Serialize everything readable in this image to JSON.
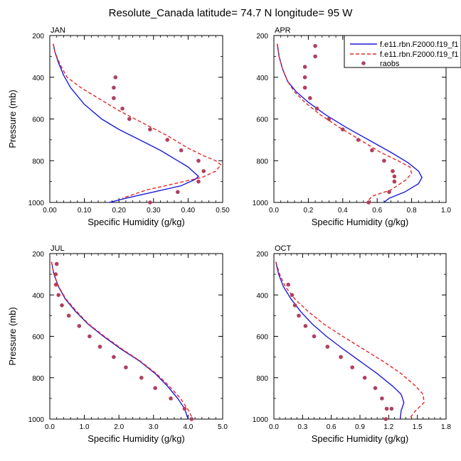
{
  "figure": {
    "title": "Resolute_Canada  latitude= 74.7 N longitude= 95 W",
    "legend": {
      "placement": "top-right of APR panel",
      "entries": [
        {
          "label": "f.e11.rbn.F2000.f19_f1",
          "style": "solid",
          "color": "#1a1adb"
        },
        {
          "label": "f.e11.rbn.F2000.f19_f1",
          "style": "dashed",
          "color": "#e8262a"
        },
        {
          "label": "raobs",
          "style": "marker",
          "color": "#b0405e"
        }
      ]
    },
    "colors": {
      "model1": "#1a1adb",
      "model2": "#e8262a",
      "raobs": "#b0405e"
    }
  },
  "chart_data": [
    {
      "type": "line",
      "panel_label": "JAN",
      "xlabel": "Specific Humidity (g/kg)",
      "ylabel": "Pressure (mb)",
      "xlim": [
        0,
        0.5
      ],
      "xticks": [
        0,
        0.1,
        0.2,
        0.3,
        0.4,
        0.5
      ],
      "xtick_labels": [
        "0.00",
        "0.10",
        "0.20",
        "0.30",
        "0.40",
        "0.50"
      ],
      "ylim": [
        1000,
        200
      ],
      "yticks": [
        200,
        400,
        600,
        800,
        1000
      ],
      "series": [
        {
          "name": "f.e11.rbn.F2000.f19_f1",
          "style": "solid",
          "x": [
            0.01,
            0.015,
            0.025,
            0.04,
            0.06,
            0.1,
            0.15,
            0.2,
            0.26,
            0.32,
            0.37,
            0.4,
            0.42,
            0.43,
            0.42,
            0.38,
            0.3,
            0.22,
            0.16
          ],
          "y": [
            240,
            280,
            330,
            390,
            450,
            530,
            600,
            650,
            700,
            750,
            800,
            830,
            860,
            875,
            890,
            920,
            950,
            980,
            1005
          ]
        },
        {
          "name": "f.e11.rbn.F2000.f19_f1",
          "style": "dashed",
          "x": [
            0.01,
            0.015,
            0.03,
            0.05,
            0.09,
            0.14,
            0.2,
            0.27,
            0.34,
            0.4,
            0.45,
            0.48,
            0.495,
            0.48,
            0.44,
            0.36,
            0.28,
            0.21
          ],
          "y": [
            240,
            280,
            340,
            400,
            450,
            500,
            560,
            620,
            680,
            740,
            780,
            800,
            820,
            850,
            880,
            910,
            940,
            980
          ]
        }
      ],
      "raobs": {
        "x": [
          0.19,
          0.185,
          0.185,
          0.21,
          0.23,
          0.29,
          0.34,
          0.38,
          0.43,
          0.445,
          0.43,
          0.37,
          0.29
        ],
        "y": [
          400,
          450,
          500,
          550,
          600,
          650,
          700,
          750,
          800,
          850,
          900,
          950,
          1000
        ]
      }
    },
    {
      "type": "line",
      "panel_label": "APR",
      "xlabel": "Specific Humidity (g/kg)",
      "ylabel": "",
      "xlim": [
        0,
        1.0
      ],
      "xticks": [
        0,
        0.2,
        0.4,
        0.6,
        0.8,
        1.0
      ],
      "xtick_labels": [
        "0.0",
        "0.2",
        "0.4",
        "0.6",
        "0.8",
        "1.0"
      ],
      "ylim": [
        1000,
        200
      ],
      "yticks": [
        200,
        400,
        600,
        800,
        1000
      ],
      "series": [
        {
          "name": "f.e11.rbn.F2000.f19_f1",
          "style": "solid",
          "x": [
            0.02,
            0.03,
            0.05,
            0.08,
            0.13,
            0.2,
            0.3,
            0.42,
            0.55,
            0.68,
            0.78,
            0.84,
            0.86,
            0.84,
            0.76,
            0.67,
            0.63
          ],
          "y": [
            240,
            300,
            360,
            420,
            470,
            520,
            580,
            640,
            700,
            760,
            810,
            850,
            880,
            910,
            950,
            980,
            1005
          ]
        },
        {
          "name": "f.e11.rbn.F2000.f19_f1",
          "style": "dashed",
          "x": [
            0.02,
            0.03,
            0.05,
            0.08,
            0.12,
            0.18,
            0.27,
            0.38,
            0.5,
            0.62,
            0.72,
            0.79,
            0.8,
            0.77,
            0.68,
            0.57,
            0.54
          ],
          "y": [
            240,
            300,
            360,
            420,
            470,
            520,
            580,
            640,
            700,
            760,
            800,
            830,
            860,
            890,
            940,
            970,
            1000
          ]
        }
      ],
      "raobs": {
        "x": [
          0.24,
          0.24,
          0.18,
          0.18,
          0.18,
          0.21,
          0.25,
          0.32,
          0.4,
          0.49,
          0.57,
          0.64,
          0.69,
          0.7,
          0.7,
          0.67,
          0.55
        ],
        "y": [
          250,
          300,
          350,
          400,
          450,
          500,
          550,
          600,
          650,
          700,
          750,
          800,
          850,
          875,
          900,
          950,
          1000
        ]
      }
    },
    {
      "type": "line",
      "panel_label": "JUL",
      "xlabel": "Specific Humidity (g/kg)",
      "ylabel": "Pressure (mb)",
      "xlim": [
        0,
        5.0
      ],
      "xticks": [
        0,
        1,
        2,
        3,
        4,
        5
      ],
      "xtick_labels": [
        "0.0",
        "1.0",
        "2.0",
        "3.0",
        "4.0",
        "5.0"
      ],
      "ylim": [
        1000,
        200
      ],
      "yticks": [
        200,
        400,
        600,
        800,
        1000
      ],
      "series": [
        {
          "name": "f.e11.rbn.F2000.f19_f1",
          "style": "solid",
          "x": [
            0.05,
            0.12,
            0.25,
            0.45,
            0.75,
            1.1,
            1.55,
            2.05,
            2.6,
            3.05,
            3.4,
            3.7,
            3.9,
            4.0
          ],
          "y": [
            240,
            300,
            360,
            420,
            480,
            540,
            600,
            660,
            720,
            780,
            840,
            900,
            950,
            1000
          ]
        },
        {
          "name": "f.e11.rbn.F2000.f19_f1",
          "style": "dashed",
          "x": [
            0.05,
            0.12,
            0.26,
            0.47,
            0.78,
            1.12,
            1.58,
            2.08,
            2.62,
            3.08,
            3.45,
            3.78,
            4.02,
            4.15
          ],
          "y": [
            240,
            300,
            360,
            420,
            480,
            540,
            600,
            660,
            720,
            780,
            840,
            900,
            960,
            1005
          ]
        }
      ],
      "raobs": {
        "x": [
          0.2,
          0.17,
          0.18,
          0.25,
          0.35,
          0.55,
          0.85,
          1.15,
          1.45,
          1.85,
          2.2,
          2.65,
          3.05,
          3.5,
          3.9,
          4.1
        ],
        "y": [
          250,
          300,
          350,
          400,
          450,
          500,
          550,
          600,
          650,
          700,
          750,
          800,
          850,
          900,
          950,
          1000
        ]
      }
    },
    {
      "type": "line",
      "panel_label": "OCT",
      "xlabel": "Specific Humidity (g/kg)",
      "ylabel": "",
      "xlim": [
        0,
        1.8
      ],
      "xticks": [
        0,
        0.3,
        0.6,
        0.9,
        1.2,
        1.5,
        1.8
      ],
      "xtick_labels": [
        "0.0",
        "0.3",
        "0.6",
        "0.9",
        "1.2",
        "1.5",
        "1.8"
      ],
      "ylim": [
        1000,
        200
      ],
      "yticks": [
        200,
        400,
        600,
        800,
        1000
      ],
      "series": [
        {
          "name": "f.e11.rbn.F2000.f19_f1",
          "style": "solid",
          "x": [
            0.02,
            0.05,
            0.1,
            0.18,
            0.28,
            0.4,
            0.55,
            0.72,
            0.9,
            1.08,
            1.24,
            1.33,
            1.36,
            1.33,
            1.32
          ],
          "y": [
            240,
            300,
            360,
            420,
            480,
            540,
            600,
            660,
            720,
            780,
            840,
            880,
            920,
            960,
            1005
          ]
        },
        {
          "name": "f.e11.rbn.F2000.f19_f1",
          "style": "dashed",
          "x": [
            0.02,
            0.06,
            0.12,
            0.22,
            0.36,
            0.52,
            0.72,
            0.93,
            1.14,
            1.33,
            1.48,
            1.56,
            1.57,
            1.48,
            1.43,
            1.43
          ],
          "y": [
            240,
            300,
            360,
            420,
            480,
            540,
            600,
            660,
            720,
            780,
            840,
            880,
            920,
            960,
            990,
            1005
          ]
        }
      ],
      "raobs": {
        "x": [
          0.15,
          0.19,
          0.22,
          0.26,
          0.33,
          0.42,
          0.56,
          0.7,
          0.82,
          0.95,
          1.06,
          1.13,
          1.18,
          1.23,
          1.17
        ],
        "y": [
          350,
          400,
          450,
          500,
          550,
          600,
          650,
          700,
          750,
          800,
          850,
          900,
          950,
          950,
          1000
        ]
      }
    }
  ]
}
